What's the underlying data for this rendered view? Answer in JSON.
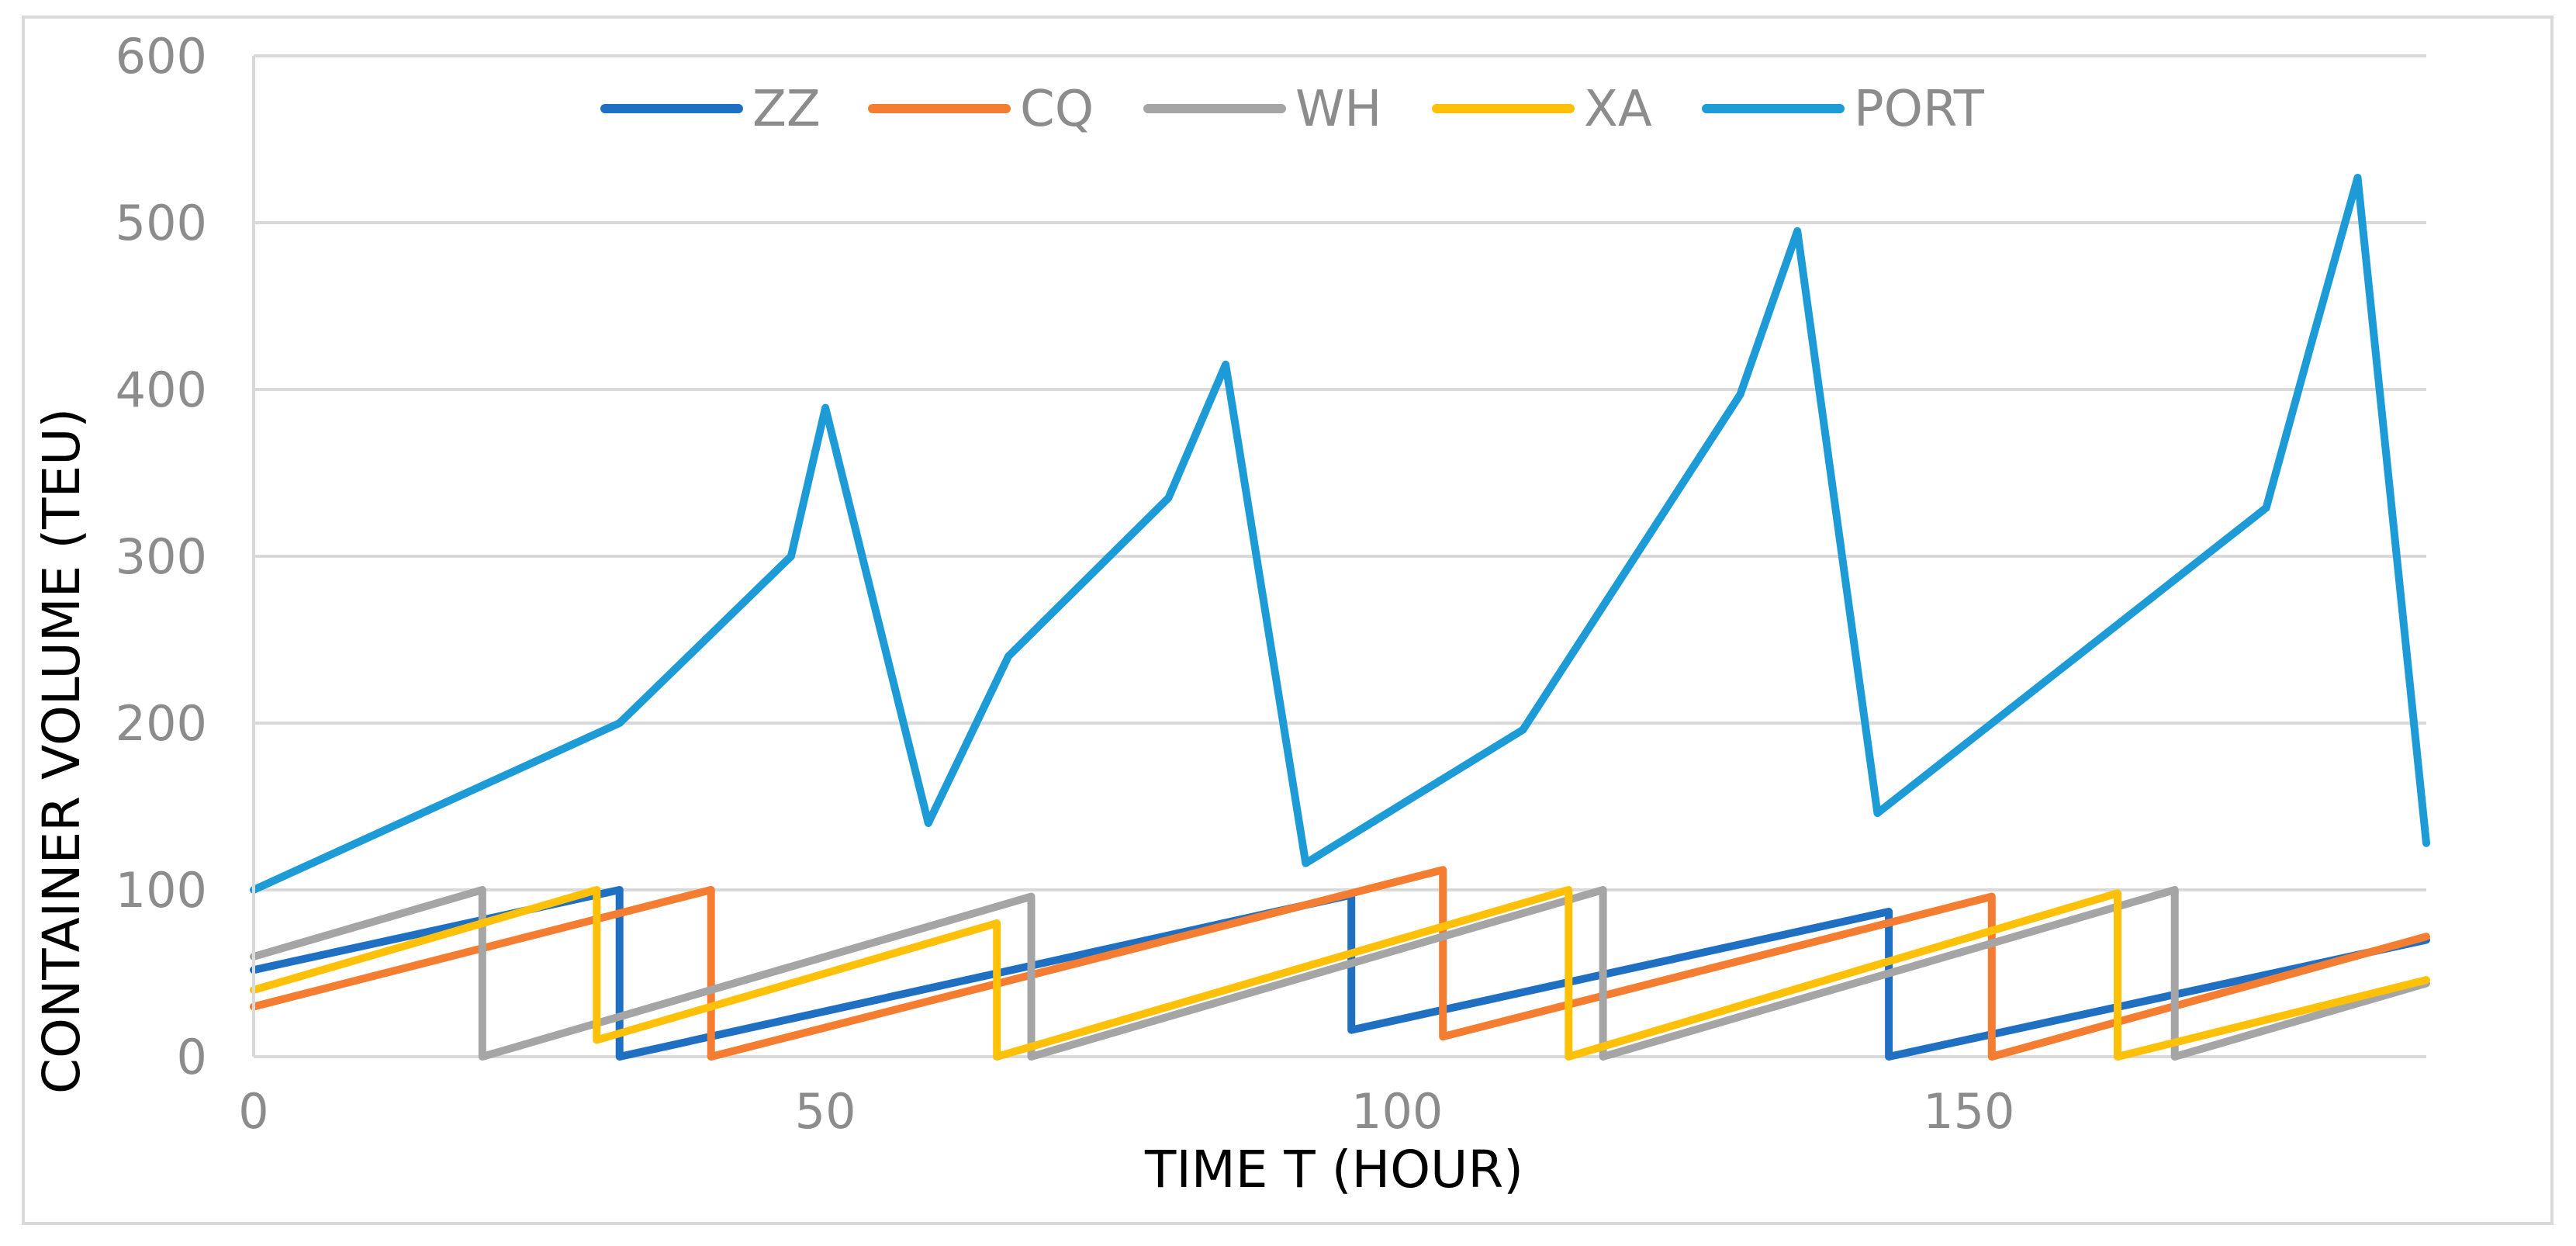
{
  "chart_data": {
    "type": "line",
    "title": "",
    "xlabel": "TIME T (HOUR)",
    "ylabel": "CONTAINER VOLUME (TEU)",
    "xlim": [
      0,
      190
    ],
    "ylim": [
      0,
      600
    ],
    "xticks": [
      0,
      50,
      100,
      150
    ],
    "yticks": [
      0,
      100,
      200,
      300,
      400,
      500,
      600
    ],
    "grid": "horizontal",
    "legend_position": "top",
    "series": [
      {
        "name": "ZZ",
        "color": "#1f6fc2",
        "points": [
          [
            0,
            52
          ],
          [
            32,
            100
          ],
          [
            32,
            0
          ],
          [
            96,
            97
          ],
          [
            96,
            16
          ],
          [
            143,
            87
          ],
          [
            143,
            0
          ],
          [
            190,
            70
          ]
        ]
      },
      {
        "name": "CQ",
        "color": "#f47d32",
        "points": [
          [
            0,
            30
          ],
          [
            40,
            100
          ],
          [
            40,
            0
          ],
          [
            104,
            112
          ],
          [
            104,
            12
          ],
          [
            152,
            96
          ],
          [
            152,
            0
          ],
          [
            190,
            72
          ]
        ]
      },
      {
        "name": "WH",
        "color": "#a5a5a5",
        "points": [
          [
            0,
            60
          ],
          [
            20,
            100
          ],
          [
            20,
            0
          ],
          [
            68,
            96
          ],
          [
            68,
            0
          ],
          [
            118,
            100
          ],
          [
            118,
            0
          ],
          [
            168,
            100
          ],
          [
            168,
            0
          ],
          [
            190,
            44
          ]
        ]
      },
      {
        "name": "XA",
        "color": "#ffc107",
        "points": [
          [
            0,
            40
          ],
          [
            30,
            100
          ],
          [
            30,
            10
          ],
          [
            65,
            80
          ],
          [
            65,
            0
          ],
          [
            115,
            100
          ],
          [
            115,
            0
          ],
          [
            163,
            98
          ],
          [
            163,
            0
          ],
          [
            190,
            46
          ]
        ]
      },
      {
        "name": "PORT",
        "color": "#1d9bd7",
        "points": [
          [
            0,
            100
          ],
          [
            32,
            200
          ],
          [
            47,
            300
          ],
          [
            50,
            389
          ],
          [
            59,
            140
          ],
          [
            66,
            240
          ],
          [
            80,
            335
          ],
          [
            85,
            415
          ],
          [
            92,
            116
          ],
          [
            111,
            196
          ],
          [
            130,
            397
          ],
          [
            135,
            495
          ],
          [
            142,
            146
          ],
          [
            176,
            329
          ],
          [
            180,
            429
          ],
          [
            184,
            527
          ],
          [
            190,
            128
          ]
        ]
      }
    ]
  }
}
